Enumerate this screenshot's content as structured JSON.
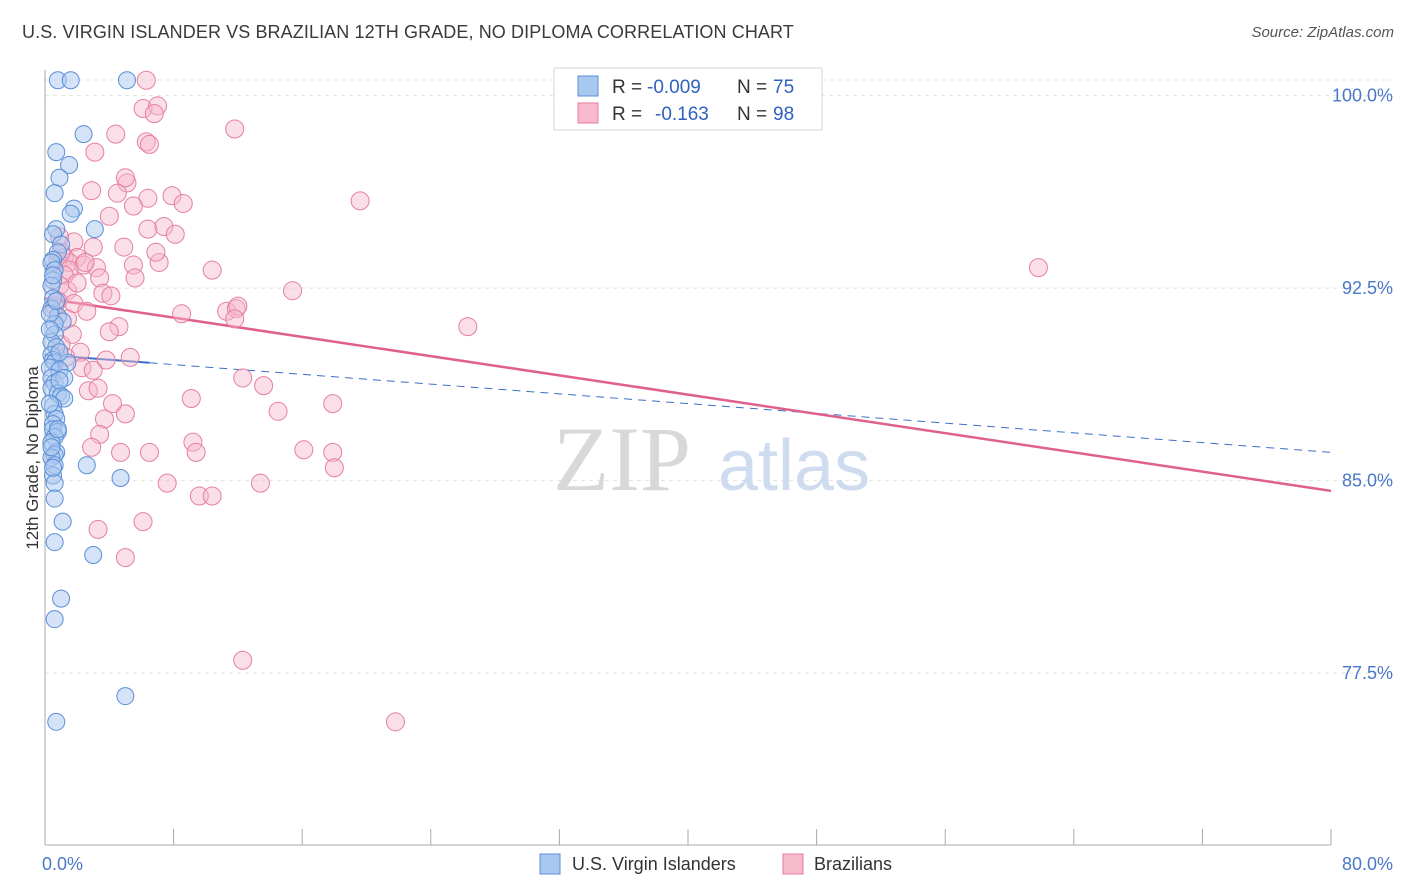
{
  "title": "U.S. VIRGIN ISLANDER VS BRAZILIAN 12TH GRADE, NO DIPLOMA CORRELATION CHART",
  "source": "Source: ZipAtlas.com",
  "watermark": {
    "zip": "ZIP",
    "atlas": "atlas"
  },
  "colors": {
    "blue_fill": "#a9c8f0",
    "blue_stroke": "#5b8fd6",
    "blue_line": "#3a6fc8",
    "pink_fill": "#f7b9cc",
    "pink_stroke": "#e57fa0",
    "pink_line": "#e0608c",
    "grid": "#e2e2e2",
    "tick_text": "#4a78c8"
  },
  "legend": {
    "rows": [
      {
        "r_label": "R = ",
        "r_value": "-0.009",
        "n_label": "N = ",
        "n_value": "75"
      },
      {
        "r_label": "R = ",
        "r_value": "-0.163",
        "n_label": "N = ",
        "n_value": "98"
      }
    ]
  },
  "bottom_legend": [
    "U.S. Virgin Islanders",
    "Brazilians"
  ],
  "chart_data": {
    "type": "scatter",
    "xlabel": "",
    "ylabel": "12th Grade, No Diploma",
    "xlim": [
      0,
      80
    ],
    "ylim": [
      70.8,
      101.0
    ],
    "x_tick_labels": [
      {
        "value": 0,
        "label": "0.0%"
      },
      {
        "value": 80,
        "label": "80.0%"
      }
    ],
    "y_tick_labels": [
      {
        "value": 100,
        "label": "100.0%"
      },
      {
        "value": 92.5,
        "label": "92.5%"
      },
      {
        "value": 85,
        "label": "85.0%"
      },
      {
        "value": 77.5,
        "label": "77.5%"
      }
    ],
    "series": [
      {
        "name": "U.S. Virgin Islanders",
        "r": -0.009,
        "n": 75,
        "trend": {
          "x0": 0,
          "y0": 89.9,
          "x1": 80,
          "y1": 86.1,
          "solid_until": 6.5
        },
        "points": [
          [
            0.8,
            100.6
          ],
          [
            1.6,
            100.6
          ],
          [
            5.1,
            100.6
          ],
          [
            2.4,
            98.5
          ],
          [
            0.7,
            97.8
          ],
          [
            1.5,
            97.3
          ],
          [
            0.9,
            96.8
          ],
          [
            0.6,
            96.2
          ],
          [
            1.8,
            95.6
          ],
          [
            1.6,
            95.4
          ],
          [
            0.7,
            94.8
          ],
          [
            3.1,
            94.8
          ],
          [
            0.5,
            94.6
          ],
          [
            1.0,
            94.2
          ],
          [
            0.8,
            93.9
          ],
          [
            0.5,
            93.6
          ],
          [
            0.4,
            93.5
          ],
          [
            0.6,
            93.2
          ],
          [
            0.5,
            92.8
          ],
          [
            0.4,
            92.6
          ],
          [
            0.5,
            92.1
          ],
          [
            0.4,
            91.7
          ],
          [
            0.8,
            91.4
          ],
          [
            1.1,
            91.2
          ],
          [
            0.6,
            91.1
          ],
          [
            0.6,
            90.7
          ],
          [
            0.4,
            90.4
          ],
          [
            0.7,
            90.2
          ],
          [
            0.4,
            89.9
          ],
          [
            0.5,
            89.7
          ],
          [
            0.6,
            89.6
          ],
          [
            1.4,
            89.6
          ],
          [
            0.3,
            89.4
          ],
          [
            0.9,
            89.3
          ],
          [
            0.4,
            89.0
          ],
          [
            0.6,
            88.8
          ],
          [
            0.4,
            88.6
          ],
          [
            0.8,
            88.4
          ],
          [
            1.0,
            88.3
          ],
          [
            1.2,
            88.2
          ],
          [
            0.5,
            87.9
          ],
          [
            0.6,
            87.6
          ],
          [
            0.7,
            87.4
          ],
          [
            0.5,
            87.2
          ],
          [
            0.5,
            87.0
          ],
          [
            0.8,
            86.9
          ],
          [
            0.6,
            86.7
          ],
          [
            0.4,
            86.5
          ],
          [
            0.7,
            86.1
          ],
          [
            0.6,
            86.0
          ],
          [
            0.4,
            85.9
          ],
          [
            0.6,
            85.6
          ],
          [
            2.6,
            85.6
          ],
          [
            0.5,
            85.2
          ],
          [
            4.7,
            85.1
          ],
          [
            0.6,
            84.9
          ],
          [
            0.6,
            84.3
          ],
          [
            1.1,
            83.4
          ],
          [
            0.6,
            82.6
          ],
          [
            3.0,
            82.1
          ],
          [
            1.0,
            80.4
          ],
          [
            0.6,
            79.6
          ],
          [
            5.0,
            76.6
          ],
          [
            0.7,
            75.6
          ],
          [
            0.3,
            91.5
          ],
          [
            0.9,
            90.0
          ],
          [
            0.3,
            88.0
          ],
          [
            0.8,
            87.0
          ],
          [
            0.4,
            86.3
          ],
          [
            1.2,
            89.0
          ],
          [
            0.5,
            85.5
          ],
          [
            0.9,
            88.9
          ],
          [
            0.3,
            90.9
          ],
          [
            0.7,
            92.0
          ],
          [
            0.5,
            93.0
          ]
        ]
      },
      {
        "name": "Brazilians",
        "r": -0.163,
        "n": 98,
        "trend": {
          "x0": 0,
          "y0": 92.1,
          "x1": 80,
          "y1": 84.6,
          "solid_until": 80
        },
        "points": [
          [
            6.3,
            100.6
          ],
          [
            6.1,
            99.5
          ],
          [
            7.0,
            99.6
          ],
          [
            6.8,
            99.3
          ],
          [
            4.4,
            98.5
          ],
          [
            11.8,
            98.7
          ],
          [
            6.3,
            98.2
          ],
          [
            6.5,
            98.1
          ],
          [
            3.1,
            97.8
          ],
          [
            5.1,
            96.6
          ],
          [
            5.0,
            96.8
          ],
          [
            4.5,
            96.2
          ],
          [
            2.9,
            96.3
          ],
          [
            6.4,
            96.0
          ],
          [
            7.9,
            96.1
          ],
          [
            8.6,
            95.8
          ],
          [
            19.6,
            95.9
          ],
          [
            5.5,
            95.7
          ],
          [
            4.0,
            95.3
          ],
          [
            6.4,
            94.8
          ],
          [
            7.4,
            94.9
          ],
          [
            8.1,
            94.6
          ],
          [
            1.8,
            94.3
          ],
          [
            3.0,
            94.1
          ],
          [
            4.9,
            94.1
          ],
          [
            2.0,
            93.7
          ],
          [
            1.2,
            93.7
          ],
          [
            0.8,
            93.6
          ],
          [
            1.5,
            93.5
          ],
          [
            2.4,
            93.4
          ],
          [
            3.2,
            93.3
          ],
          [
            1.5,
            93.2
          ],
          [
            7.1,
            93.5
          ],
          [
            6.9,
            93.9
          ],
          [
            5.5,
            93.4
          ],
          [
            10.4,
            93.2
          ],
          [
            1.2,
            93.0
          ],
          [
            3.4,
            92.9
          ],
          [
            5.6,
            92.9
          ],
          [
            0.9,
            92.6
          ],
          [
            1.4,
            92.4
          ],
          [
            3.6,
            92.3
          ],
          [
            4.1,
            92.2
          ],
          [
            15.4,
            92.4
          ],
          [
            61.8,
            93.3
          ],
          [
            0.8,
            92.0
          ],
          [
            1.8,
            91.9
          ],
          [
            2.6,
            91.6
          ],
          [
            11.3,
            91.6
          ],
          [
            11.9,
            91.7
          ],
          [
            12.0,
            91.8
          ],
          [
            1.4,
            91.3
          ],
          [
            4.6,
            91.0
          ],
          [
            11.8,
            91.3
          ],
          [
            26.3,
            91.0
          ],
          [
            4.0,
            90.8
          ],
          [
            1.0,
            90.3
          ],
          [
            2.2,
            90.0
          ],
          [
            5.3,
            89.8
          ],
          [
            3.8,
            89.7
          ],
          [
            2.3,
            89.4
          ],
          [
            12.3,
            89.0
          ],
          [
            13.6,
            88.7
          ],
          [
            2.7,
            88.5
          ],
          [
            3.3,
            88.6
          ],
          [
            9.1,
            88.2
          ],
          [
            17.9,
            88.0
          ],
          [
            14.5,
            87.7
          ],
          [
            5.0,
            87.6
          ],
          [
            3.7,
            87.4
          ],
          [
            3.4,
            86.8
          ],
          [
            9.2,
            86.5
          ],
          [
            16.1,
            86.2
          ],
          [
            2.9,
            86.3
          ],
          [
            4.7,
            86.1
          ],
          [
            6.5,
            86.1
          ],
          [
            9.4,
            86.1
          ],
          [
            17.9,
            86.1
          ],
          [
            18.0,
            85.5
          ],
          [
            7.6,
            84.9
          ],
          [
            13.4,
            84.9
          ],
          [
            9.6,
            84.4
          ],
          [
            10.4,
            84.4
          ],
          [
            6.1,
            83.4
          ],
          [
            3.3,
            83.1
          ],
          [
            5.0,
            82.0
          ],
          [
            12.3,
            78.0
          ],
          [
            21.8,
            75.6
          ],
          [
            1.0,
            93.9
          ],
          [
            2.0,
            92.7
          ],
          [
            0.6,
            91.8
          ],
          [
            1.7,
            90.7
          ],
          [
            3.0,
            89.3
          ],
          [
            2.5,
            93.5
          ],
          [
            4.2,
            88.0
          ],
          [
            1.3,
            89.8
          ],
          [
            8.5,
            91.5
          ],
          [
            0.9,
            94.5
          ]
        ]
      }
    ]
  }
}
